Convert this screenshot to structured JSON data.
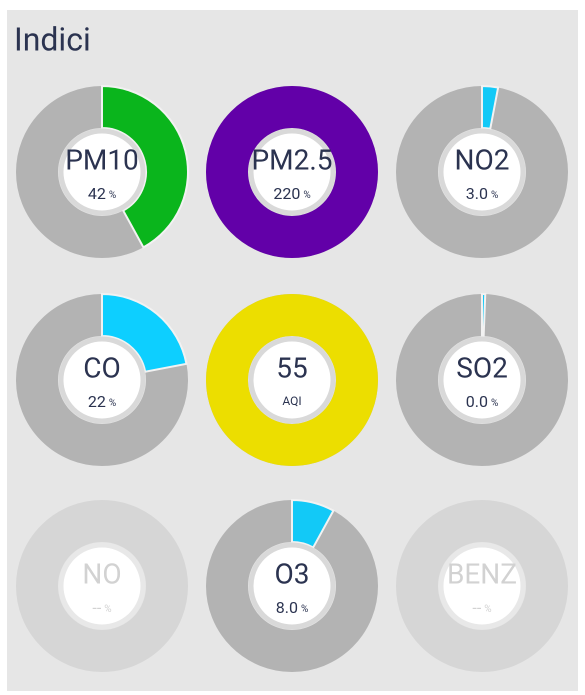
{
  "header": {
    "title": "Indici"
  },
  "gauge_range": [
    0,
    100
  ],
  "gauges": [
    {
      "label": "PM10",
      "value": 42,
      "value_label": "42",
      "unit": "%",
      "color": "#0ab51c",
      "enabled": true
    },
    {
      "label": "PM2.5",
      "value": 220,
      "value_label": "220",
      "unit": "%",
      "color": "#6200a8",
      "enabled": true
    },
    {
      "label": "NO2",
      "value": 3,
      "value_label": "3.0",
      "unit": "%",
      "color": "#12c9f7",
      "enabled": true
    },
    {
      "label": "CO",
      "value": 22,
      "value_label": "22",
      "unit": "%",
      "color": "#0dcfff",
      "enabled": true
    },
    {
      "label": "55",
      "value": 55,
      "value_label": "AQI",
      "unit": null,
      "color": "#ecde00",
      "enabled": true,
      "full": true
    },
    {
      "label": "SO2",
      "value": 0,
      "value_label": "0.0",
      "unit": "%",
      "color": "#12c9f7",
      "enabled": true
    },
    {
      "label": "NO",
      "value": null,
      "value_label": "--",
      "unit": "%",
      "color": "#d6d6d6",
      "enabled": false
    },
    {
      "label": "O3",
      "value": 8,
      "value_label": "8.0",
      "unit": "%",
      "color": "#12c9f7",
      "enabled": true
    },
    {
      "label": "BENZ",
      "value": null,
      "value_label": "--",
      "unit": "%",
      "color": "#d6d6d6",
      "enabled": false
    }
  ]
}
